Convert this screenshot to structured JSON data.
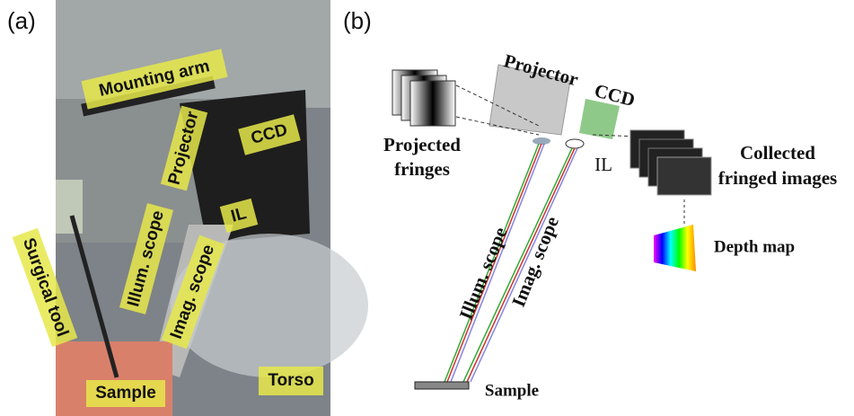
{
  "panel_a": {
    "label": "(a)",
    "annotations": [
      "Mounting arm",
      "Projector",
      "CCD",
      "IL",
      "Surgical tool",
      "Illum. scope",
      "Imag. scope",
      "Sample",
      "Torso"
    ]
  },
  "panel_b": {
    "label": "(b)",
    "projector": "Projector",
    "ccd": "CCD",
    "projected_fringes": [
      "Projected",
      "fringes"
    ],
    "il": "IL",
    "collected_images": [
      "Collected",
      "fringed images"
    ],
    "depth_map": "Depth map",
    "illum_scope": "Illum. scope",
    "imag_scope": "Imag. scope",
    "sample": "Sample"
  }
}
